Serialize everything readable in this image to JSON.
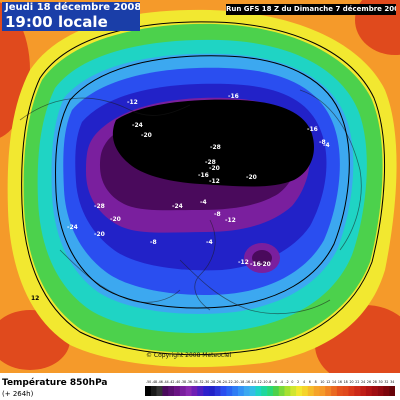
{
  "header": {
    "date_label": "Jeudi 18 décembre 2008",
    "time_label": "19:00 locale",
    "run_label": "Run GFS 18 Z du Dimanche 7 décembre 2008"
  },
  "map": {
    "copyright": "© Copyright 2008 Meteociel",
    "labels": [
      "-16",
      "-12",
      "-24",
      "-20",
      "-28",
      "-16",
      "-8",
      "-4",
      "-28",
      "-20",
      "-16",
      "-12",
      "-20",
      "-24",
      "-28",
      "-20",
      "-24",
      "-20",
      "-8",
      "-4",
      "-12",
      "-16",
      "-20",
      "-12",
      "-8",
      "-4",
      "12"
    ],
    "colors": {
      "ocean_warm": "#f59a2a",
      "ocean_hot": "#e04a1d",
      "yellow": "#f2e830",
      "green": "#4cd14c",
      "teal": "#1fd4c4",
      "light_blue": "#3ca8f0",
      "blue": "#2a4ef0",
      "deep_blue": "#2222c8",
      "purple": "#7a1f9e",
      "black": "#000000"
    }
  },
  "footer": {
    "title": "Température 850hPa",
    "subtitle": "(+ 264h)",
    "legend_ticks": [
      "-50",
      "-48",
      "-46",
      "-44",
      "-42",
      "-40",
      "-38",
      "-36",
      "-34",
      "-32",
      "-30",
      "-28",
      "-26",
      "-24",
      "-22",
      "-20",
      "-18",
      "-16",
      "-14",
      "-12",
      "-10",
      "-8",
      "-6",
      "-4",
      "-2",
      "0",
      "2",
      "4",
      "6",
      "8",
      "10",
      "12",
      "14",
      "16",
      "18",
      "20",
      "22",
      "24",
      "26",
      "28",
      "30",
      "32",
      "34"
    ],
    "legend_colors": [
      "#000000",
      "#1a1a1a",
      "#333333",
      "#4a0a5c",
      "#5a0f70",
      "#6a1384",
      "#7a1f9e",
      "#8a2ab0",
      "#6f1fb5",
      "#4e1fc0",
      "#2d1fcc",
      "#2222c8",
      "#2a36d8",
      "#2a4ef0",
      "#2a64f2",
      "#2f7cf4",
      "#3492f5",
      "#3ca8f0",
      "#33bee6",
      "#1fd4c4",
      "#1fd89e",
      "#2ad878",
      "#4cd14c",
      "#7ad83a",
      "#a6e030",
      "#d0e630",
      "#f2e830",
      "#f5d42a",
      "#f5bc2a",
      "#f5a42a",
      "#f59a2a",
      "#f08226",
      "#ea6a22",
      "#e4521e",
      "#e04a1d",
      "#d8381a",
      "#cc2a18",
      "#bf1e16",
      "#b01414",
      "#a00e12",
      "#900a10",
      "#7c060c",
      "#660409"
    ]
  }
}
